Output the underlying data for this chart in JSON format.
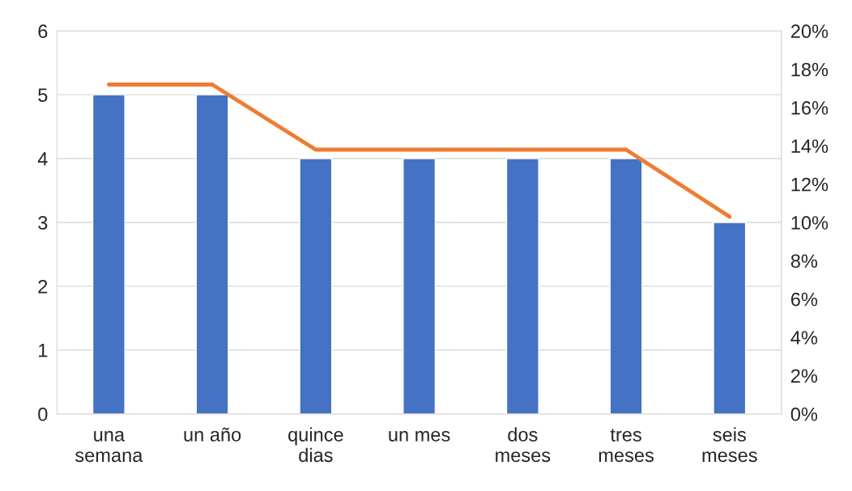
{
  "chart_data": {
    "type": "bar",
    "categories": [
      "una\nsemana",
      "un año",
      "quince\ndias",
      "un mes",
      "dos\nmeses",
      "tres\nmeses",
      "seis\nmeses"
    ],
    "series": [
      {
        "color": "#4472c4",
        "values": [
          5,
          5,
          4,
          4,
          4,
          4,
          3
        ]
      },
      {
        "type": "line",
        "axis": "y2",
        "color": "#ed7d31",
        "marker": "none",
        "line_style": "solid",
        "values": [
          17.2,
          17.2,
          13.8,
          13.8,
          13.8,
          13.8,
          10.3
        ]
      }
    ],
    "ylim": [
      0,
      6
    ],
    "yticks": [
      0,
      1,
      2,
      3,
      4,
      5,
      6
    ],
    "y2lim": [
      0,
      20
    ],
    "y2ticks": [
      {
        "value": 0,
        "label": "0%"
      },
      {
        "value": 2,
        "label": "2%"
      },
      {
        "value": 4,
        "label": "4%"
      },
      {
        "value": 6,
        "label": "6%"
      },
      {
        "value": 8,
        "label": "8%"
      },
      {
        "value": 10,
        "label": "10%"
      },
      {
        "value": 12,
        "label": "12%"
      },
      {
        "value": 14,
        "label": "14%"
      },
      {
        "value": 16,
        "label": "16%"
      },
      {
        "value": 18,
        "label": "18%"
      },
      {
        "value": 20,
        "label": "20%"
      }
    ],
    "grid": "y",
    "legend": false
  }
}
